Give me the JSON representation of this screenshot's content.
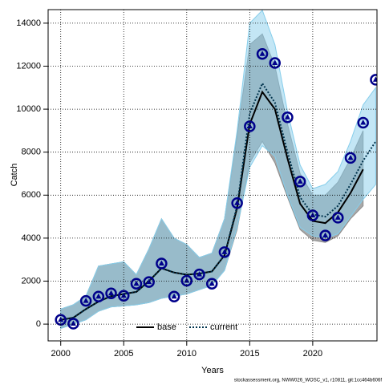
{
  "chart_data": {
    "type": "line",
    "x_label": "Years",
    "y_label": "Catch",
    "footer": "stockassessment.org, NWW026_WOSC_v1, r10811, git:1cc464b606f",
    "x": [
      2000,
      2001,
      2002,
      2003,
      2004,
      2005,
      2006,
      2007,
      2008,
      2009,
      2010,
      2011,
      2012,
      2013,
      2014,
      2015,
      2016,
      2017,
      2018,
      2019,
      2020,
      2021,
      2022,
      2023,
      2024,
      2025
    ],
    "xlim": [
      1999,
      2025.1
    ],
    "xticks": [
      2000,
      2005,
      2010,
      2015,
      2020
    ],
    "ylim": [
      -780,
      14630
    ],
    "yticks": [
      0,
      2000,
      4000,
      6000,
      8000,
      10000,
      12000,
      14000
    ],
    "grid": true,
    "legend": "bottom",
    "series": [
      {
        "name": "base",
        "color": "#000000",
        "band_color": "#8c8c8c",
        "values": [
          200,
          300,
          700,
          1050,
          1300,
          1400,
          1500,
          2000,
          2600,
          2400,
          2300,
          2350,
          2450,
          3200,
          5400,
          9300,
          10800,
          10000,
          7700,
          5600,
          4800,
          4700,
          5200,
          6100,
          7200,
          null
        ],
        "upper": [
          700,
          900,
          1300,
          2700,
          2800,
          2900,
          2300,
          3500,
          4900,
          4000,
          3700,
          3100,
          3300,
          4900,
          8800,
          13000,
          13500,
          12000,
          9300,
          7000,
          6000,
          6000,
          6600,
          7700,
          9000,
          null
        ],
        "lower": [
          -200,
          0,
          200,
          600,
          800,
          850,
          900,
          1000,
          1200,
          1300,
          1400,
          1600,
          1800,
          2500,
          4400,
          7500,
          8500,
          7500,
          5900,
          4400,
          3900,
          3800,
          4100,
          4900,
          5500,
          null
        ]
      },
      {
        "name": "current",
        "color": "#00334d",
        "band_color": "#87ceeb",
        "values": [
          200,
          300,
          700,
          1050,
          1300,
          1400,
          1500,
          2000,
          2600,
          2400,
          2300,
          2350,
          2450,
          3200,
          5500,
          9800,
          11200,
          10300,
          8000,
          5900,
          5100,
          5000,
          5500,
          6500,
          7600,
          8500
        ],
        "upper": [
          700,
          900,
          1300,
          2700,
          2800,
          2900,
          2300,
          3500,
          4900,
          4000,
          3700,
          3100,
          3300,
          4900,
          9000,
          14000,
          14600,
          13000,
          9900,
          7400,
          6300,
          6500,
          7100,
          8500,
          10200,
          11000
        ],
        "lower": [
          -200,
          0,
          200,
          600,
          800,
          850,
          900,
          1000,
          1200,
          1300,
          1400,
          1600,
          1800,
          2500,
          4500,
          7300,
          8300,
          7800,
          6000,
          4500,
          4100,
          4000,
          4200,
          5000,
          5800,
          6500
        ]
      }
    ],
    "observed": {
      "color": "#00008b",
      "values": [
        200,
        20,
        1080,
        1280,
        1430,
        1320,
        1880,
        1960,
        2820,
        1280,
        2020,
        2310,
        1880,
        3350,
        5630,
        9200,
        12570,
        12150,
        9620,
        6630,
        5060,
        4120,
        4950,
        7730,
        9370,
        11370
      ]
    }
  }
}
